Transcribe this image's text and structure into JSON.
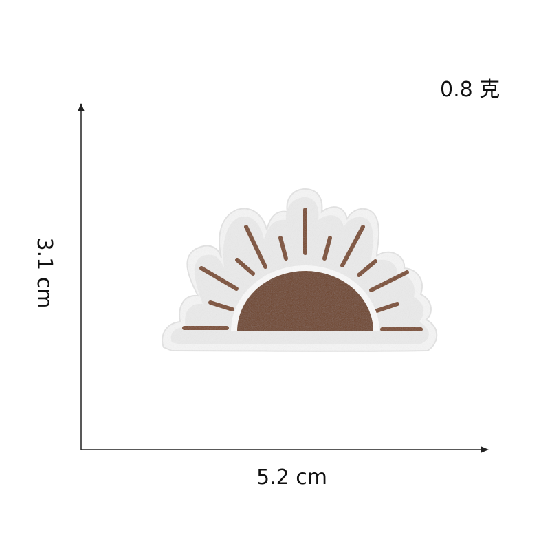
{
  "labels": {
    "weight": "0.8 克",
    "height": "3.1 cm",
    "width": "5.2 cm"
  },
  "colors": {
    "axis": "#222222",
    "patch_fill": "#eeeeee",
    "patch_border": "#fafafa",
    "embroidery_brown": "#7a4a2c",
    "sun_fill": "#6e4328"
  },
  "product": {
    "type": "embroidered-half-sun-patch",
    "ray_count": 13
  }
}
